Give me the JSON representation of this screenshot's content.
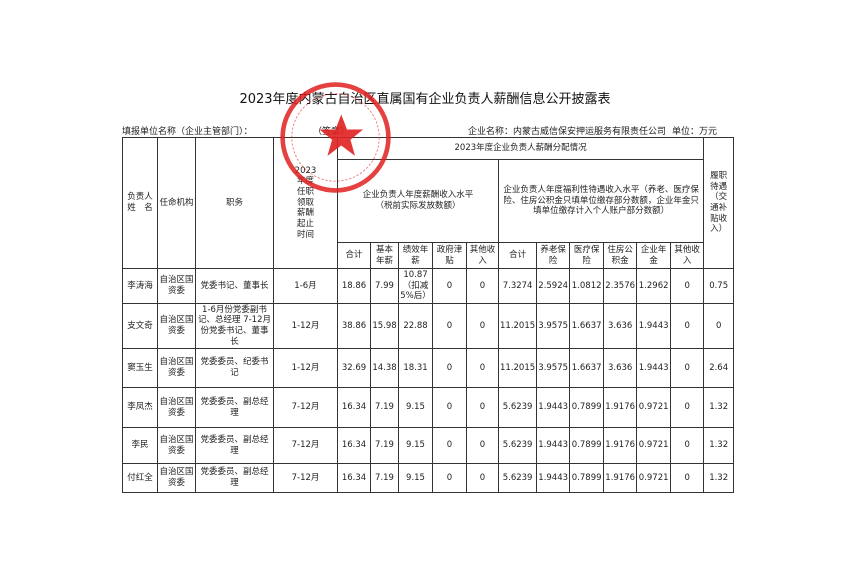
{
  "title": "2023年度内蒙古自治区直属国有企业负责人薪酬信息公开披露表",
  "meta": {
    "reporting_unit_label": "填报单位名称（企业主管部门）：",
    "seal_label": "（签章）",
    "company_label": "企业名称：内蒙古威信保安押运服务有限责任公司",
    "unit_label": "单位：万元"
  },
  "headers": {
    "name": "负责人姓　名",
    "appointing_body": "任命机构",
    "position": "职务",
    "period": "2023年度任职领取薪酬起止时间",
    "distribution": "2023年度企业负责人薪酬分配情况",
    "salary_group": "企业负责人年度薪酬收入水平（税前实际发放数额）",
    "welfare_group": "企业负责人年度福利性待遇收入水平（养老、医疗保险、住房公积金只填单位缴存部分数额，企业年金只填单位缴存计入个人账户部分数额）",
    "duty_benefit": "履职待遇（交通补贴收入）",
    "salary_cols": [
      "合计",
      "基本年薪",
      "绩效年薪",
      "政府津贴",
      "其他收入"
    ],
    "welfare_cols": [
      "合计",
      "养老保险",
      "医疗保险",
      "住房公积金",
      "企业年金",
      "其他收入"
    ]
  },
  "rows": [
    {
      "name": "李涛海",
      "body": "自治区国资委",
      "position": "党委书记、董事长",
      "period": "1-6月",
      "s_total": "18.86",
      "s_base": "7.99",
      "s_perf": "10.87（扣减5%后）",
      "s_gov": "0",
      "s_other": "0",
      "w_total": "7.3274",
      "w_pension": "2.5924",
      "w_medical": "1.0812",
      "w_housing": "2.3576",
      "w_annuity": "1.2962",
      "w_other": "0",
      "duty": "0.75"
    },
    {
      "name": "支文奇",
      "body": "自治区国资委",
      "position": "1-6月份党委副书记、总经理 7-12月份党委书记、董事长",
      "period": "1-12月",
      "s_total": "38.86",
      "s_base": "15.98",
      "s_perf": "22.88",
      "s_gov": "0",
      "s_other": "0",
      "w_total": "11.2015",
      "w_pension": "3.9575",
      "w_medical": "1.6637",
      "w_housing": "3.636",
      "w_annuity": "1.9443",
      "w_other": "0",
      "duty": "0"
    },
    {
      "name": "窦玉生",
      "body": "自治区国资委",
      "position": "党委委员、纪委书记",
      "period": "1-12月",
      "s_total": "32.69",
      "s_base": "14.38",
      "s_perf": "18.31",
      "s_gov": "0",
      "s_other": "0",
      "w_total": "11.2015",
      "w_pension": "3.9575",
      "w_medical": "1.6637",
      "w_housing": "3.636",
      "w_annuity": "1.9443",
      "w_other": "0",
      "duty": "2.64"
    },
    {
      "name": "李凤杰",
      "body": "自治区国资委",
      "position": "党委委员、副总经理",
      "period": "7-12月",
      "s_total": "16.34",
      "s_base": "7.19",
      "s_perf": "9.15",
      "s_gov": "0",
      "s_other": "0",
      "w_total": "5.6239",
      "w_pension": "1.9443",
      "w_medical": "0.7899",
      "w_housing": "1.9176",
      "w_annuity": "0.9721",
      "w_other": "0",
      "duty": "1.32"
    },
    {
      "name": "李民",
      "body": "自治区国资委",
      "position": "党委委员、副总经理",
      "period": "7-12月",
      "s_total": "16.34",
      "s_base": "7.19",
      "s_perf": "9.15",
      "s_gov": "0",
      "s_other": "0",
      "w_total": "5.6239",
      "w_pension": "1.9443",
      "w_medical": "0.7899",
      "w_housing": "1.9176",
      "w_annuity": "0.9721",
      "w_other": "0",
      "duty": "1.32"
    },
    {
      "name": "付红全",
      "body": "自治区国资委",
      "position": "党委委员、副总经理",
      "period": "7-12月",
      "s_total": "16.34",
      "s_base": "7.19",
      "s_perf": "9.15",
      "s_gov": "0",
      "s_other": "0",
      "w_total": "5.6239",
      "w_pension": "1.9443",
      "w_medical": "0.7899",
      "w_housing": "1.9176",
      "w_annuity": "0.9721",
      "w_other": "0",
      "duty": "1.32"
    }
  ],
  "colors": {
    "stamp": "#e02020",
    "border": "#333333"
  }
}
